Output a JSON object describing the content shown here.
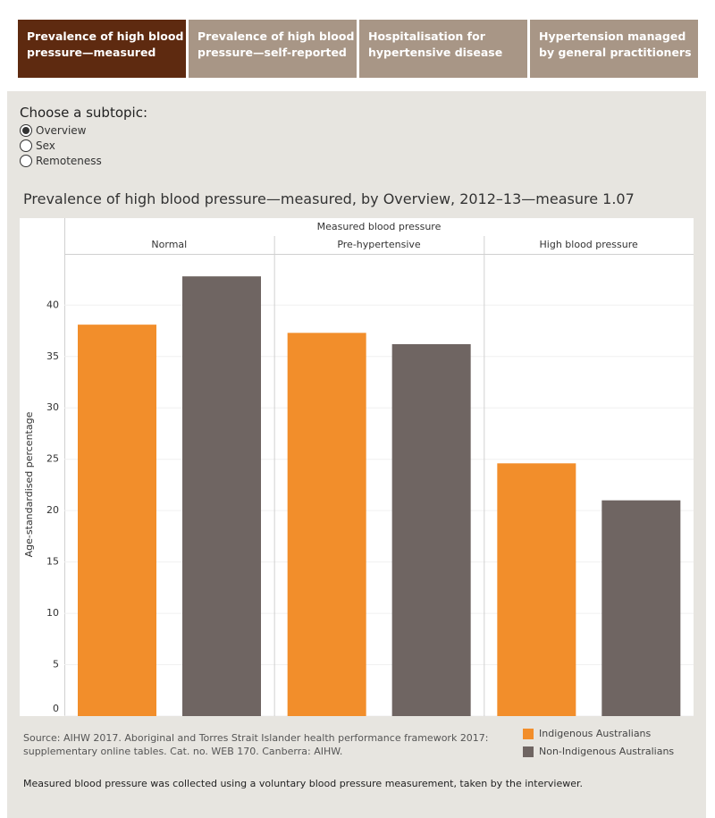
{
  "tabs": [
    "Prevalence of high blood pressure—measured",
    "Prevalence of high blood pressure—self-reported",
    "Hospitalisation for hypertensive disease",
    "Hypertension managed by general practitioners"
  ],
  "active_tab": 0,
  "subtopic": {
    "label": "Choose a subtopic:",
    "options": [
      "Overview",
      "Sex",
      "Remoteness"
    ],
    "selected": 0
  },
  "chart_data": {
    "type": "bar",
    "title": "Prevalence of high blood pressure—measured, by Overview, 2012–13—measure 1.07",
    "x_header": "Measured blood pressure",
    "categories": [
      "Normal",
      "Pre-hypertensive",
      "High blood pressure"
    ],
    "y_label": "Age-standardised percentage",
    "series": [
      {
        "name": "Indigenous Australians",
        "color": "#f28e2b",
        "values": [
          38.1,
          37.3,
          24.6
        ]
      },
      {
        "name": "Non-Indigenous Australians",
        "color": "#6f6562",
        "values": [
          42.8,
          36.2,
          21.0
        ]
      }
    ],
    "ylim": [
      0,
      44.9
    ],
    "yticks": [
      0,
      5,
      10,
      15,
      20,
      25,
      30,
      35,
      40
    ],
    "grid": true,
    "legend": "bottom-right"
  },
  "source": "Source: AIHW 2017. Aboriginal and Torres Strait Islander health performance framework 2017: supplementary online tables. Cat. no. WEB 170. Canberra: AIHW.",
  "note": "Measured blood pressure was collected using a voluntary blood pressure measurement, taken by the interviewer."
}
